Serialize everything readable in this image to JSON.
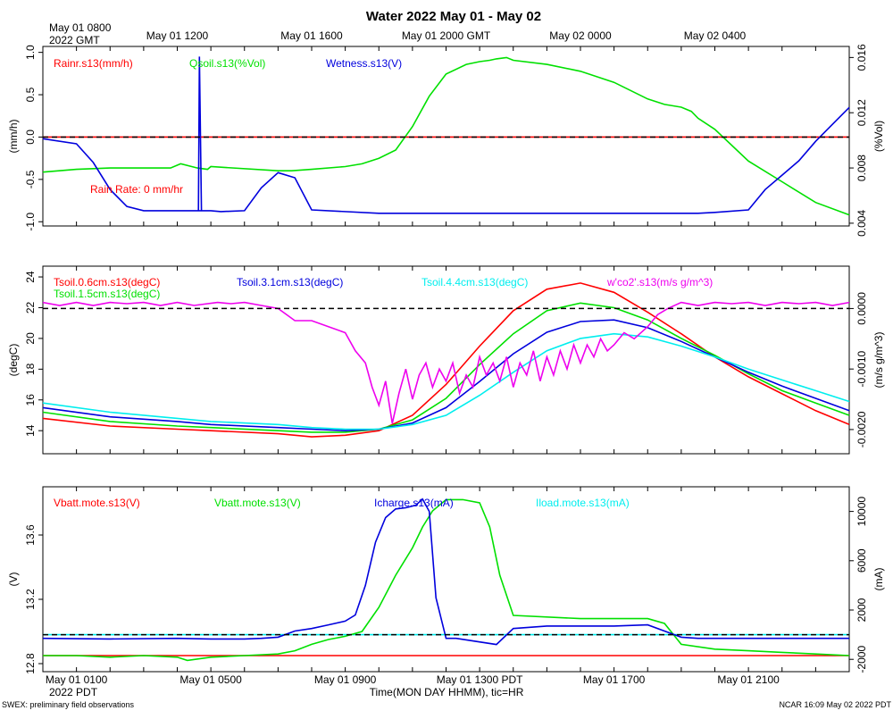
{
  "title": "Water 2022 May 01 - May 02",
  "top_time_start_label": [
    "May 01 0800",
    "2022 GMT"
  ],
  "top_ticks": [
    {
      "hour": 4,
      "label": "May 01 1200"
    },
    {
      "hour": 8,
      "label": "May 01 1600"
    },
    {
      "hour": 12,
      "label": "May 01 2000 GMT"
    },
    {
      "hour": 16,
      "label": "May 02 0000"
    },
    {
      "hour": 20,
      "label": "May 02 0400"
    }
  ],
  "bottom_ticks": [
    {
      "hour": 1,
      "label": "May 01 0100"
    },
    {
      "hour": 5,
      "label": "May 01 0500"
    },
    {
      "hour": 9,
      "label": "May 01 0900"
    },
    {
      "hour": 13,
      "label": "May 01 1300 PDT"
    },
    {
      "hour": 17,
      "label": "May 01 1700"
    },
    {
      "hour": 21,
      "label": "May 01 2100"
    }
  ],
  "bottom_year_label": "2022 PDT",
  "xlabel": "Time(MON DAY HHMM), tic=HR",
  "footer_left": "SWEX: preliminary field observations",
  "footer_right": "NCAR 16:09 May 02 2022 PDT",
  "colors": {
    "red": "#ff0000",
    "green": "#00e000",
    "blue": "#0000dd",
    "cyan": "#00eeee",
    "magenta": "#ee00ee"
  },
  "chart_data": [
    {
      "type": "line",
      "panel": "water",
      "xlim": [
        0,
        24
      ],
      "left_axis": {
        "label": "(mm/h)",
        "ylim": [
          -1.05,
          1.07
        ],
        "ticks": [
          "-1.0",
          "-0.5",
          "0.0",
          "0.5",
          "1.0"
        ],
        "tick_values": [
          -1.0,
          -0.5,
          0.0,
          0.5,
          1.0
        ]
      },
      "right_axis": {
        "label": "(%Vol)",
        "ylim": [
          0.0038,
          0.0168
        ],
        "ticks": [
          "0.004",
          "0.008",
          "0.012",
          "0.016"
        ],
        "tick_values": [
          0.004,
          0.008,
          0.012,
          0.016
        ]
      },
      "reference_line": 0.0,
      "legend": [
        {
          "text": "Rainr.s13(mm/h)",
          "color": "red"
        },
        {
          "text": "Qsoil.s13(%Vol)",
          "color": "green"
        },
        {
          "text": "Wetness.s13(V)",
          "color": "blue"
        }
      ],
      "annotation": "Rain Rate: 0 mm/hr",
      "series": [
        {
          "name": "Rainr.s13(mm/h)",
          "axis": "left",
          "color": "red",
          "x": [
            0,
            24
          ],
          "y": [
            0,
            0
          ]
        },
        {
          "name": "Qsoil.s13(%Vol)",
          "axis": "right",
          "color": "green",
          "x": [
            0,
            1,
            2,
            3,
            3.8,
            4.1,
            4.6,
            4.9,
            5.0,
            7,
            7.4,
            8,
            9,
            9.5,
            10,
            10.5,
            11,
            11.5,
            12,
            12.6,
            13,
            13.3,
            13.5,
            13.8,
            14,
            15,
            16,
            17,
            18,
            18.5,
            19,
            19.3,
            19.5,
            20,
            21,
            22,
            23,
            24
          ],
          "y": [
            0.0077,
            0.0079,
            0.008,
            0.008,
            0.008,
            0.0083,
            0.008,
            0.0079,
            0.0081,
            0.0078,
            0.0078,
            0.0079,
            0.0081,
            0.0083,
            0.0087,
            0.0093,
            0.011,
            0.0132,
            0.0148,
            0.0155,
            0.0157,
            0.0158,
            0.0159,
            0.016,
            0.0158,
            0.0155,
            0.015,
            0.0142,
            0.013,
            0.0126,
            0.0124,
            0.0121,
            0.0116,
            0.0108,
            0.0085,
            0.007,
            0.0055,
            0.0046
          ]
        },
        {
          "name": "Wetness.s13(V)",
          "axis": "left",
          "color": "blue",
          "x": [
            0,
            1,
            1.5,
            2,
            2.5,
            3,
            3.5,
            4,
            4.5,
            5,
            5.3,
            6,
            6.5,
            7,
            7.5,
            8,
            10,
            12,
            14,
            16,
            18,
            19.5,
            20,
            21,
            21.5,
            22,
            22.5,
            23,
            23.5,
            24
          ],
          "y": [
            -0.02,
            -0.08,
            -0.3,
            -0.62,
            -0.82,
            -0.87,
            -0.87,
            -0.87,
            -0.87,
            -0.87,
            -0.88,
            -0.87,
            -0.6,
            -0.42,
            -0.48,
            -0.86,
            -0.9,
            -0.9,
            -0.9,
            -0.9,
            -0.9,
            -0.9,
            -0.89,
            -0.86,
            -0.62,
            -0.45,
            -0.28,
            -0.05,
            0.15,
            0.35
          ]
        },
        {
          "name": "Wetness spike",
          "axis": "left",
          "color": "blue",
          "x": [
            4.63,
            4.66,
            4.72
          ],
          "y": [
            -0.87,
            0.95,
            -0.87
          ]
        }
      ]
    },
    {
      "type": "line",
      "panel": "temperature",
      "xlim": [
        0,
        24
      ],
      "left_axis": {
        "label": "(degC)",
        "ylim": [
          12.5,
          24.7
        ],
        "ticks": [
          "14",
          "16",
          "18",
          "20",
          "22",
          "24"
        ],
        "tick_values": [
          14,
          16,
          18,
          20,
          22,
          24
        ]
      },
      "right_axis": {
        "label": "(m/s g/m^3)",
        "ylim": [
          -0.0024,
          0.0007
        ],
        "ticks": [
          "-0.0020",
          "-0.0010",
          "0.0000"
        ],
        "tick_values": [
          -0.002,
          -0.001,
          0.0
        ]
      },
      "reference_line": 0.0,
      "legend": [
        {
          "text": "Tsoil.0.6cm.s13(degC)",
          "color": "red"
        },
        {
          "text": "Tsoil.1.5cm.s13(degC)",
          "color": "green"
        },
        {
          "text": "Tsoil.3.1cm.s13(degC)",
          "color": "blue"
        },
        {
          "text": "Tsoil.4.4cm.s13(degC)",
          "color": "cyan"
        },
        {
          "text": "w'co2'.s13(m/s g/m^3)",
          "color": "magenta"
        }
      ],
      "series": [
        {
          "name": "Tsoil.0.6cm.s13(degC)",
          "axis": "left",
          "color": "red",
          "x": [
            0,
            2,
            4,
            5,
            7,
            8,
            9,
            10,
            11,
            12,
            13,
            14,
            15,
            16,
            17,
            18,
            19,
            20,
            21,
            22,
            23,
            24
          ],
          "y": [
            14.8,
            14.3,
            14.1,
            14.0,
            13.8,
            13.6,
            13.7,
            14.0,
            15.0,
            17.0,
            19.5,
            21.8,
            23.2,
            23.6,
            23.0,
            21.7,
            20.3,
            18.8,
            17.5,
            16.4,
            15.3,
            14.4
          ]
        },
        {
          "name": "Tsoil.1.5cm.s13(degC)",
          "axis": "left",
          "color": "green",
          "x": [
            0,
            2,
            4,
            5,
            7,
            8,
            9,
            10,
            11,
            12,
            13,
            14,
            15,
            16,
            17,
            18,
            19,
            20,
            21,
            22,
            23,
            24
          ],
          "y": [
            15.2,
            14.6,
            14.3,
            14.2,
            14.0,
            13.9,
            13.9,
            14.1,
            14.7,
            16.1,
            18.3,
            20.3,
            21.8,
            22.3,
            22.0,
            21.2,
            20.0,
            18.9,
            17.7,
            16.6,
            15.8,
            15.0
          ]
        },
        {
          "name": "Tsoil.3.1cm.s13(degC)",
          "axis": "left",
          "color": "blue",
          "x": [
            0,
            2,
            4,
            5,
            7,
            8,
            9,
            10,
            11,
            12,
            13,
            14,
            15,
            16,
            17,
            18,
            19,
            20,
            21,
            22,
            23,
            24
          ],
          "y": [
            15.5,
            14.9,
            14.6,
            14.4,
            14.2,
            14.1,
            14.0,
            14.1,
            14.5,
            15.5,
            17.2,
            19.0,
            20.4,
            21.1,
            21.2,
            20.7,
            19.8,
            18.8,
            17.8,
            16.9,
            16.1,
            15.3
          ]
        },
        {
          "name": "Tsoil.4.4cm.s13(degC)",
          "axis": "left",
          "color": "cyan",
          "x": [
            0,
            2,
            4,
            5,
            7,
            8,
            9,
            10,
            11,
            12,
            13,
            14,
            15,
            16,
            17,
            18,
            19,
            20,
            21,
            22,
            23,
            24
          ],
          "y": [
            15.8,
            15.2,
            14.8,
            14.6,
            14.4,
            14.2,
            14.1,
            14.1,
            14.4,
            15.0,
            16.3,
            17.8,
            19.2,
            20.0,
            20.3,
            20.1,
            19.5,
            18.8,
            18.0,
            17.3,
            16.6,
            15.9
          ]
        },
        {
          "name": "w'co2'.s13(m/s g/m^3)",
          "axis": "right",
          "color": "magenta",
          "x": [
            0,
            0.5,
            1,
            1.5,
            2,
            2.5,
            3,
            3.5,
            4,
            4.5,
            5.2,
            5.6,
            6,
            6.5,
            7,
            7.5,
            8,
            8.5,
            9,
            9.3,
            9.6,
            9.8,
            10,
            10.2,
            10.4,
            10.6,
            10.8,
            11,
            11.2,
            11.4,
            11.6,
            11.8,
            12,
            12.2,
            12.4,
            12.6,
            12.8,
            13,
            13.2,
            13.4,
            13.6,
            13.8,
            14,
            14.2,
            14.4,
            14.6,
            14.8,
            15,
            15.2,
            15.4,
            15.6,
            15.8,
            16,
            16.2,
            16.4,
            16.6,
            16.8,
            17,
            17.3,
            17.6,
            18,
            18.3,
            18.6,
            19,
            19.5,
            20,
            20.5,
            21,
            21.5,
            22,
            22.5,
            23,
            23.5,
            24
          ],
          "y": [
            0.0001,
            5e-05,
            0.0001,
            5e-05,
            0.0001,
            8e-05,
            0.0001,
            5e-05,
            0.0001,
            5e-05,
            0.0001,
            8e-05,
            0.0001,
            5e-05,
            0.0,
            -0.0002,
            -0.0002,
            -0.0003,
            -0.0004,
            -0.0007,
            -0.0009,
            -0.0013,
            -0.0016,
            -0.0012,
            -0.0019,
            -0.0014,
            -0.001,
            -0.0015,
            -0.0011,
            -0.0009,
            -0.0013,
            -0.001,
            -0.0012,
            -0.0009,
            -0.0014,
            -0.0011,
            -0.0013,
            -0.0008,
            -0.0011,
            -0.0009,
            -0.0012,
            -0.0008,
            -0.0013,
            -0.0009,
            -0.0011,
            -0.0007,
            -0.0012,
            -0.0008,
            -0.0011,
            -0.0007,
            -0.001,
            -0.0006,
            -0.0009,
            -0.0006,
            -0.0008,
            -0.0005,
            -0.0007,
            -0.0006,
            -0.0004,
            -0.0005,
            -0.0003,
            -0.0001,
            0.0,
            0.0001,
            5e-05,
            0.0001,
            8e-05,
            0.0001,
            5e-05,
            0.0001,
            8e-05,
            0.0001,
            5e-05,
            0.0001
          ]
        }
      ]
    },
    {
      "type": "line",
      "panel": "power",
      "xlim": [
        0,
        24
      ],
      "left_axis": {
        "label": "(V)",
        "ylim": [
          12.75,
          13.9
        ],
        "ticks": [
          "12.8",
          "13.2",
          "13.6"
        ],
        "tick_values": [
          12.8,
          13.2,
          13.6
        ]
      },
      "right_axis": {
        "label": "(mA)",
        "ylim": [
          -3000,
          12000
        ],
        "ticks": [
          "-2000",
          "2000",
          "6000",
          "10000"
        ],
        "tick_values": [
          -2000,
          2000,
          6000,
          10000
        ]
      },
      "reference_line": 0,
      "legend": [
        {
          "text": "Vbatt.mote.s13(V)",
          "color": "red"
        },
        {
          "text": "Vbatt.mote.s13(V)",
          "color": "green"
        },
        {
          "text": "Icharge.s13(mA)",
          "color": "blue"
        },
        {
          "text": "Iload.mote.s13(mA)",
          "color": "cyan"
        }
      ],
      "series": [
        {
          "name": "Iload.mote.s13(mA)",
          "axis": "right",
          "color": "cyan",
          "x": [
            0,
            24
          ],
          "y": [
            0,
            0
          ]
        },
        {
          "name": "Vbatt.mote.s13(V) red",
          "axis": "left",
          "color": "red",
          "x": [
            0,
            24
          ],
          "y": [
            12.85,
            12.85
          ]
        },
        {
          "name": "Vbatt.mote.s13(V)",
          "axis": "left",
          "color": "green",
          "x": [
            0,
            1,
            2,
            3,
            4,
            4.3,
            5,
            6,
            7,
            7.5,
            8,
            8.5,
            9,
            9.5,
            10,
            10.5,
            11,
            11.3,
            11.6,
            12,
            12.5,
            13,
            13.3,
            13.6,
            14,
            16,
            17,
            18,
            18.5,
            19,
            20,
            21,
            22,
            23,
            24
          ],
          "y": [
            12.85,
            12.85,
            12.84,
            12.85,
            12.84,
            12.82,
            12.84,
            12.85,
            12.86,
            12.88,
            12.92,
            12.95,
            12.97,
            13.0,
            13.15,
            13.35,
            13.52,
            13.65,
            13.75,
            13.82,
            13.82,
            13.8,
            13.65,
            13.35,
            13.1,
            13.08,
            13.08,
            13.08,
            13.05,
            12.92,
            12.89,
            12.88,
            12.87,
            12.86,
            12.85
          ]
        },
        {
          "name": "Icharge.s13(mA)",
          "axis": "right",
          "color": "blue",
          "x": [
            0,
            2,
            4,
            5,
            6,
            6.5,
            7,
            7.5,
            8,
            8.5,
            9,
            9.3,
            9.6,
            9.9,
            10.2,
            10.5,
            10.8,
            11.1,
            11.3,
            11.5,
            11.7,
            12,
            12.3,
            13.5,
            14,
            15,
            16,
            17,
            18,
            19,
            19.5,
            20,
            21,
            22,
            23,
            24
          ],
          "y": [
            -300,
            -350,
            -300,
            -350,
            -350,
            -300,
            -200,
            300,
            500,
            800,
            1100,
            1600,
            4000,
            7500,
            9500,
            10200,
            10300,
            10500,
            11000,
            10000,
            3000,
            -300,
            -300,
            -800,
            500,
            700,
            700,
            700,
            800,
            -200,
            -300,
            -300,
            -300,
            -300,
            -300,
            -300
          ]
        }
      ]
    }
  ]
}
